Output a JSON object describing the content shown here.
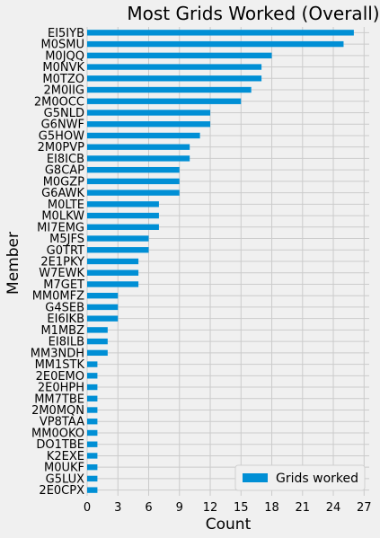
{
  "chart_data": {
    "type": "bar",
    "orientation": "horizontal",
    "title": "Most Grids Worked (Overall)",
    "xlabel": "Count",
    "ylabel": "Member",
    "xlim": [
      0,
      27.5
    ],
    "xticks": [
      0,
      3,
      6,
      9,
      12,
      15,
      18,
      21,
      24,
      27
    ],
    "grid": true,
    "legend_position": "bottom-right",
    "bar_color": "#008fd5",
    "categories": [
      "EI5IYB",
      "M0SMU",
      "M0JQQ",
      "M0NVK",
      "M0TZO",
      "2M0IIG",
      "2M0OCC",
      "G5NLD",
      "G6NWF",
      "G5HOW",
      "2M0PVP",
      "EI8ICB",
      "G8CAP",
      "M0GZP",
      "G6AWK",
      "M0LTE",
      "M0LKW",
      "MI7EMG",
      "M5JFS",
      "G0TRT",
      "2E1PKY",
      "W7EWK",
      "M7GET",
      "MM0MFZ",
      "G4SEB",
      "EI6IKB",
      "M1MBZ",
      "EI8ILB",
      "MM3NDH",
      "MM1STK",
      "2E0EMO",
      "2E0HPH",
      "MM7TBE",
      "2M0MQN",
      "VP8TAA",
      "MM0OKO",
      "DO1TBE",
      "K2EXE",
      "M0UKF",
      "G5LUX",
      "2E0CPX"
    ],
    "series": [
      {
        "name": "Grids worked",
        "values": [
          26,
          25,
          18,
          17,
          17,
          16,
          15,
          12,
          12,
          11,
          10,
          10,
          9,
          9,
          9,
          7,
          7,
          7,
          6,
          6,
          5,
          5,
          5,
          3,
          3,
          3,
          2,
          2,
          2,
          1,
          1,
          1,
          1,
          1,
          1,
          1,
          1,
          1,
          1,
          1,
          1
        ]
      }
    ]
  }
}
